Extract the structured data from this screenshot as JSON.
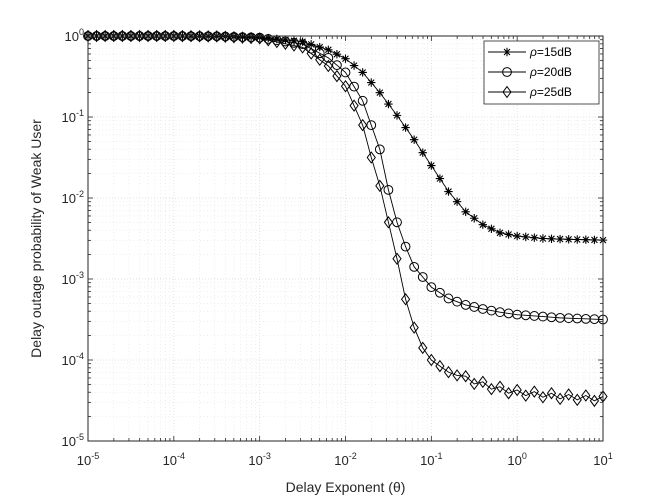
{
  "chart_data": {
    "type": "line",
    "title": "",
    "xlabel": "Delay Exponent (θ)",
    "ylabel": "Delay outage probability of Weak User",
    "xscale": "log",
    "yscale": "log",
    "xlim": [
      1e-05,
      10
    ],
    "ylim": [
      1e-05,
      1
    ],
    "grid": true,
    "legend_position": "top-right",
    "x_ticks": [
      {
        "base": "10",
        "exp": "-5"
      },
      {
        "base": "10",
        "exp": "-4"
      },
      {
        "base": "10",
        "exp": "-3"
      },
      {
        "base": "10",
        "exp": "-2"
      },
      {
        "base": "10",
        "exp": "-1"
      },
      {
        "base": "10",
        "exp": "0"
      },
      {
        "base": "10",
        "exp": "1"
      }
    ],
    "y_ticks": [
      {
        "base": "10",
        "exp": "0"
      },
      {
        "base": "10",
        "exp": "-1"
      },
      {
        "base": "10",
        "exp": "-2"
      },
      {
        "base": "10",
        "exp": "-3"
      },
      {
        "base": "10",
        "exp": "-4"
      },
      {
        "base": "10",
        "exp": "-5"
      }
    ],
    "series": [
      {
        "name": "ρ=15dB",
        "label_prefix": "ρ",
        "label_suffix": "=15dB",
        "marker": "asterisk",
        "color": "#000000",
        "anchors": [
          [
            -5.0,
            0.0
          ],
          [
            -4.0,
            0.0
          ],
          [
            -3.5,
            -0.003
          ],
          [
            -3.0,
            -0.015
          ],
          [
            -2.5,
            -0.07
          ],
          [
            -2.2,
            -0.17
          ],
          [
            -2.0,
            -0.28
          ],
          [
            -1.8,
            -0.45
          ],
          [
            -1.6,
            -0.7
          ],
          [
            -1.4,
            -0.98
          ],
          [
            -1.2,
            -1.28
          ],
          [
            -1.0,
            -1.6
          ],
          [
            -0.8,
            -1.92
          ],
          [
            -0.6,
            -2.17
          ],
          [
            -0.4,
            -2.33
          ],
          [
            -0.2,
            -2.43
          ],
          [
            0.0,
            -2.47
          ],
          [
            0.3,
            -2.5
          ],
          [
            0.6,
            -2.51
          ],
          [
            1.0,
            -2.52
          ]
        ],
        "noise": 0.0
      },
      {
        "name": "ρ=20dB",
        "label_prefix": "ρ",
        "label_suffix": "=20dB",
        "marker": "circle",
        "color": "#000000",
        "anchors": [
          [
            -5.0,
            0.0
          ],
          [
            -4.0,
            0.0
          ],
          [
            -3.5,
            -0.004
          ],
          [
            -3.0,
            -0.02
          ],
          [
            -2.5,
            -0.1
          ],
          [
            -2.2,
            -0.27
          ],
          [
            -2.0,
            -0.45
          ],
          [
            -1.8,
            -0.8
          ],
          [
            -1.6,
            -1.4
          ],
          [
            -1.5,
            -1.9
          ],
          [
            -1.4,
            -2.3
          ],
          [
            -1.3,
            -2.6
          ],
          [
            -1.2,
            -2.85
          ],
          [
            -1.0,
            -3.1
          ],
          [
            -0.8,
            -3.24
          ],
          [
            -0.6,
            -3.32
          ],
          [
            -0.4,
            -3.37
          ],
          [
            -0.2,
            -3.41
          ],
          [
            0.0,
            -3.44
          ],
          [
            0.5,
            -3.48
          ],
          [
            1.0,
            -3.5
          ]
        ],
        "noise": 0.0
      },
      {
        "name": "ρ=25dB",
        "label_prefix": "ρ",
        "label_suffix": "=25dB",
        "marker": "diamond",
        "color": "#000000",
        "anchors": [
          [
            -5.0,
            0.0
          ],
          [
            -4.0,
            0.0
          ],
          [
            -3.5,
            -0.005
          ],
          [
            -3.0,
            -0.03
          ],
          [
            -2.5,
            -0.14
          ],
          [
            -2.2,
            -0.37
          ],
          [
            -2.0,
            -0.62
          ],
          [
            -1.8,
            -1.1
          ],
          [
            -1.7,
            -1.5
          ],
          [
            -1.6,
            -1.85
          ],
          [
            -1.5,
            -2.3
          ],
          [
            -1.4,
            -2.75
          ],
          [
            -1.3,
            -3.25
          ],
          [
            -1.2,
            -3.6
          ],
          [
            -1.1,
            -3.85
          ],
          [
            -1.0,
            -4.0
          ],
          [
            -0.8,
            -4.15
          ],
          [
            -0.6,
            -4.23
          ],
          [
            -0.4,
            -4.3
          ],
          [
            -0.2,
            -4.36
          ],
          [
            0.0,
            -4.4
          ],
          [
            0.5,
            -4.45
          ],
          [
            1.0,
            -4.48
          ]
        ],
        "noise": 0.03
      }
    ],
    "points_per_series": 61
  }
}
